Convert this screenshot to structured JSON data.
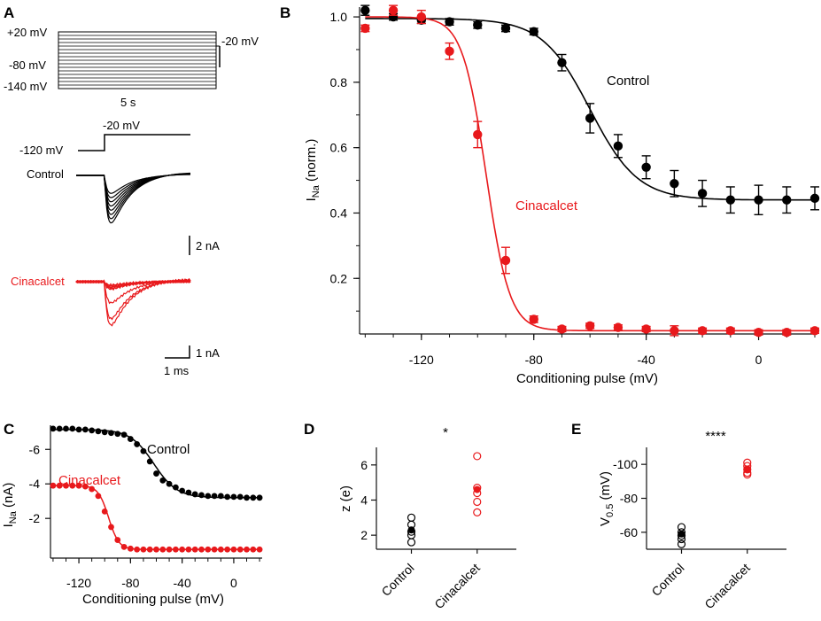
{
  "colors": {
    "control": "#000000",
    "cinacalcet": "#e8191c",
    "axis": "#111111"
  },
  "panels": {
    "a": "A",
    "b": "B",
    "c": "C",
    "d": "D",
    "e": "E"
  },
  "panel_a": {
    "protocol_labels": [
      "+20 mV",
      "-80 mV",
      "-140 mV"
    ],
    "right_label": "-20 mV",
    "duration_label": "5 s",
    "step_top_label": "-20 mV",
    "step_base_label": "-120 mV",
    "control_label": "Control",
    "cinacalcet_label": "Cinacalcet",
    "scale_control": "2 nA",
    "scale_cinacalcet": "1 nA",
    "scale_time": "1 ms"
  },
  "chart_data": [
    {
      "id": "B",
      "type": "scatter",
      "title": "",
      "xlabel": "Conditioning pulse (mV)",
      "ylabel_main": "I",
      "ylabel_sub": "Na",
      "ylabel_rest": " (norm.)",
      "xlim": [
        -142,
        20
      ],
      "ylim": [
        0.03,
        1.03
      ],
      "xticks": [
        -120,
        -80,
        -40,
        0
      ],
      "yticks": [
        0.2,
        0.4,
        0.6,
        0.8,
        1.0
      ],
      "ytick_labels": [
        "0.2",
        "0.4",
        "0.6",
        "0.8",
        "1.0"
      ],
      "x": [
        -140,
        -130,
        -120,
        -110,
        -100,
        -90,
        -80,
        -70,
        -60,
        -50,
        -40,
        -30,
        -20,
        -10,
        0,
        10,
        20
      ],
      "series": [
        {
          "name": "Control",
          "label": "Control",
          "color": "#000000",
          "values": [
            1.02,
            1.0,
            0.99,
            0.985,
            0.975,
            0.965,
            0.955,
            0.86,
            0.69,
            0.605,
            0.54,
            0.49,
            0.46,
            0.44,
            0.44,
            0.44,
            0.445
          ],
          "errors": [
            0.015,
            0.01,
            0.01,
            0.01,
            0.01,
            0.01,
            0.01,
            0.025,
            0.045,
            0.035,
            0.035,
            0.04,
            0.04,
            0.04,
            0.045,
            0.04,
            0.035
          ],
          "fit": {
            "top": 0.995,
            "bottom": 0.44,
            "v_half": -60,
            "k": 8.5
          }
        },
        {
          "name": "Cinacalcet",
          "label": "Cinacalcet",
          "color": "#e8191c",
          "values": [
            0.965,
            1.02,
            1.0,
            0.895,
            0.64,
            0.255,
            0.075,
            0.045,
            0.055,
            0.05,
            0.045,
            0.04,
            0.04,
            0.04,
            0.035,
            0.035,
            0.04
          ],
          "errors": [
            0.01,
            0.015,
            0.02,
            0.025,
            0.04,
            0.04,
            0.01,
            0.008,
            0.008,
            0.008,
            0.008,
            0.015,
            0.008,
            0.008,
            0.008,
            0.008,
            0.008
          ],
          "fit": {
            "top": 1.0,
            "bottom": 0.04,
            "v_half": -97,
            "k": 4.2
          }
        }
      ]
    },
    {
      "id": "C",
      "type": "scatter",
      "xlabel": "Conditioning pulse (mV)",
      "ylabel_main": "I",
      "ylabel_sub": "Na",
      "ylabel_rest": " (nA)",
      "xlim": [
        -142,
        22
      ],
      "ylim": [
        -7.4,
        0.3
      ],
      "xticks": [
        -120,
        -80,
        -40,
        0
      ],
      "yticks": [
        -6,
        -4,
        -2
      ],
      "ytick_labels": [
        "-6",
        "-4",
        "-2"
      ],
      "x": [
        -140,
        -135,
        -130,
        -125,
        -120,
        -115,
        -110,
        -105,
        -100,
        -95,
        -90,
        -85,
        -80,
        -75,
        -70,
        -65,
        -60,
        -55,
        -50,
        -45,
        -40,
        -35,
        -30,
        -25,
        -20,
        -15,
        -10,
        -5,
        0,
        5,
        10,
        15,
        20
      ],
      "series": [
        {
          "name": "Control",
          "label": "Control",
          "color": "#000000",
          "values": [
            -7.2,
            -7.2,
            -7.2,
            -7.2,
            -7.15,
            -7.15,
            -7.1,
            -7.05,
            -7.0,
            -6.95,
            -6.9,
            -6.85,
            -6.6,
            -6.3,
            -5.9,
            -5.3,
            -4.6,
            -4.2,
            -4.0,
            -3.8,
            -3.6,
            -3.5,
            -3.4,
            -3.35,
            -3.3,
            -3.3,
            -3.3,
            -3.25,
            -3.25,
            -3.25,
            -3.2,
            -3.2,
            -3.2
          ],
          "fit": {
            "top": -7.15,
            "bottom": -3.2,
            "v_half": -62,
            "k": 9
          }
        },
        {
          "name": "Cinacalcet",
          "label": "Cinacalcet",
          "color": "#e8191c",
          "values": [
            -3.9,
            -3.9,
            -3.9,
            -3.9,
            -3.9,
            -3.85,
            -3.7,
            -3.3,
            -2.4,
            -1.5,
            -0.75,
            -0.35,
            -0.25,
            -0.2,
            -0.2,
            -0.2,
            -0.2,
            -0.2,
            -0.2,
            -0.2,
            -0.2,
            -0.2,
            -0.2,
            -0.2,
            -0.2,
            -0.2,
            -0.2,
            -0.2,
            -0.2,
            -0.2,
            -0.2,
            -0.2,
            -0.2
          ],
          "fit": {
            "top": -3.9,
            "bottom": -0.2,
            "v_half": -97,
            "k": 4
          }
        }
      ]
    },
    {
      "id": "D",
      "type": "scatter",
      "ylabel": "z (e)",
      "ylim": [
        1.2,
        7.0
      ],
      "yticks": [
        2,
        4,
        6
      ],
      "ytick_labels": [
        "2",
        "4",
        "6"
      ],
      "categories": [
        "Control",
        "Cinacalcet"
      ],
      "significance": "*",
      "groups": [
        {
          "name": "Control",
          "color": "#000000",
          "individual": [
            1.6,
            2.0,
            2.2,
            2.6,
            3.0
          ],
          "mean": 2.3
        },
        {
          "name": "Cinacalcet",
          "color": "#e8191c",
          "individual": [
            3.3,
            3.9,
            4.4,
            4.7,
            6.5
          ],
          "mean": 4.6
        }
      ]
    },
    {
      "id": "E",
      "type": "scatter",
      "ylabel_main": "V",
      "ylabel_sub": "0.5",
      "ylabel_rest": " (mV)",
      "ylim": [
        -50,
        -110
      ],
      "yticks": [
        -60,
        -80,
        -100
      ],
      "ytick_labels": [
        "-60",
        "-80",
        "-100"
      ],
      "categories": [
        "Control",
        "Cinacalcet"
      ],
      "significance": "****",
      "groups": [
        {
          "name": "Control",
          "color": "#000000",
          "individual": [
            -53,
            -56,
            -58,
            -60,
            -63
          ],
          "mean": -59
        },
        {
          "name": "Cinacalcet",
          "color": "#e8191c",
          "individual": [
            -94,
            -95,
            -97,
            -99,
            -101
          ],
          "mean": -97
        }
      ]
    }
  ]
}
